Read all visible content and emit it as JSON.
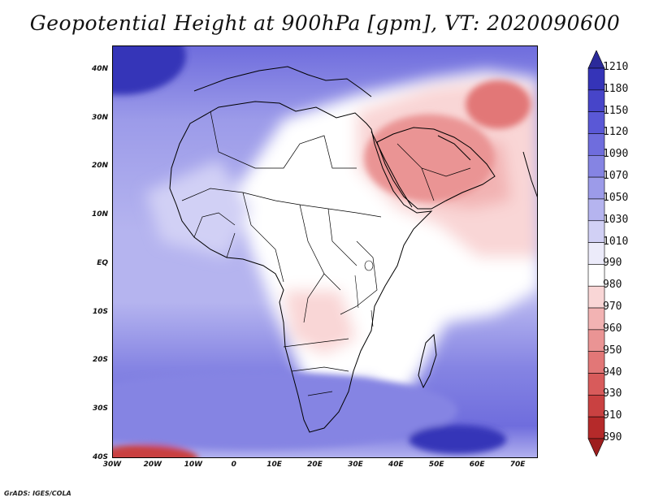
{
  "title": "Geopotential Height at 900hPa [gpm], VT: 2020090600",
  "footer": "GrADS: IGES/COLA",
  "map": {
    "lat_range": [
      -40,
      45
    ],
    "lon_range": [
      -30,
      75
    ],
    "lat_ticks": [
      {
        "value": 40,
        "label": "40N"
      },
      {
        "value": 30,
        "label": "30N"
      },
      {
        "value": 20,
        "label": "20N"
      },
      {
        "value": 10,
        "label": "10N"
      },
      {
        "value": 0,
        "label": "EQ"
      },
      {
        "value": -10,
        "label": "10S"
      },
      {
        "value": -20,
        "label": "20S"
      },
      {
        "value": -30,
        "label": "30S"
      },
      {
        "value": -40,
        "label": "40S"
      }
    ],
    "lon_ticks": [
      {
        "value": -30,
        "label": "30W"
      },
      {
        "value": -20,
        "label": "20W"
      },
      {
        "value": -10,
        "label": "10W"
      },
      {
        "value": 0,
        "label": "0"
      },
      {
        "value": 10,
        "label": "10E"
      },
      {
        "value": 20,
        "label": "20E"
      },
      {
        "value": 30,
        "label": "30E"
      },
      {
        "value": 40,
        "label": "40E"
      },
      {
        "value": 50,
        "label": "50E"
      },
      {
        "value": 60,
        "label": "60E"
      },
      {
        "value": 70,
        "label": "70E"
      }
    ]
  },
  "colorbar": {
    "labels": [
      "1210",
      "1180",
      "1150",
      "1120",
      "1090",
      "1070",
      "1050",
      "1030",
      "1010",
      "990",
      "980",
      "970",
      "960",
      "950",
      "940",
      "930",
      "910",
      "890"
    ],
    "colors": [
      "#2b2a9a",
      "#3534b8",
      "#4745c9",
      "#5a58d6",
      "#6f6ddd",
      "#8584e3",
      "#9c9be9",
      "#b5b4ef",
      "#d1d0f5",
      "#ecebfa",
      "#ffffff",
      "#f9d6d6",
      "#f2b3b3",
      "#ea9494",
      "#e27777",
      "#d85b5b",
      "#c94141",
      "#b52a2a",
      "#9e1e1e"
    ]
  },
  "fields": [
    {
      "name": "north-atlantic-high",
      "lon": -28,
      "lat": 43,
      "rx": 16,
      "ry": 8,
      "color": "#3534b8"
    },
    {
      "name": "south-atlantic-band",
      "lon": 5,
      "lat": -30,
      "rx": 50,
      "ry": 8,
      "color": "#8584e3"
    },
    {
      "name": "south-indian-high",
      "lon": 55,
      "lat": -36,
      "rx": 12,
      "ry": 3,
      "color": "#3534b8"
    },
    {
      "name": "arabian-low",
      "lon": 48,
      "lat": 22,
      "rx": 16,
      "ry": 9,
      "color": "#ea9494"
    },
    {
      "name": "iran-low",
      "lon": 65,
      "lat": 33,
      "rx": 8,
      "ry": 5,
      "color": "#e27777"
    },
    {
      "name": "sw-atlantic-low",
      "lon": -22,
      "lat": -40,
      "rx": 13,
      "ry": 3,
      "color": "#c94141"
    }
  ]
}
